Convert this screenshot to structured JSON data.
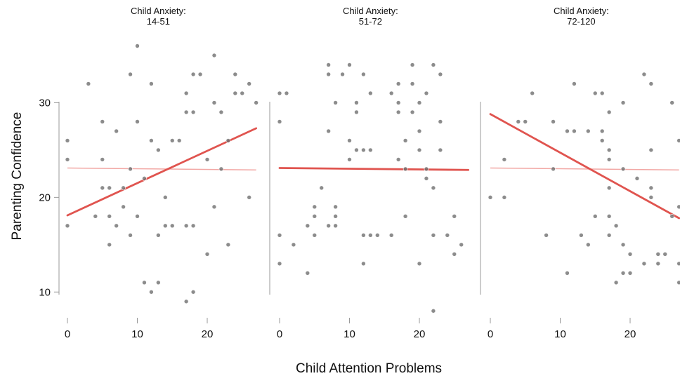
{
  "chart_data": {
    "type": "scatter",
    "xlabel": "Child Attention Problems",
    "ylabel": "Parenting Confidence",
    "xlim": [
      -1,
      27
    ],
    "ylim": [
      7.5,
      37
    ],
    "x_ticks": [
      0,
      10,
      20
    ],
    "y_ticks": [
      10,
      20,
      30
    ],
    "grid": false,
    "colors": {
      "point": "#6b6b6b",
      "fit_line": "#e0544f",
      "reference_line": "#f2a8a5",
      "axis": "#9a9a9a"
    },
    "reference_line": {
      "x": [
        0,
        27
      ],
      "y": [
        23.1,
        22.9
      ]
    },
    "panels": [
      {
        "title": "Child Anxiety:",
        "subtitle": "14-51",
        "fit_line": {
          "x": [
            0,
            27
          ],
          "y": [
            18.1,
            27.3
          ]
        },
        "points": [
          [
            0,
            26
          ],
          [
            0,
            24
          ],
          [
            0,
            17
          ],
          [
            3,
            32
          ],
          [
            4,
            18
          ],
          [
            5,
            28
          ],
          [
            5,
            24
          ],
          [
            5,
            21
          ],
          [
            6,
            21
          ],
          [
            6,
            18
          ],
          [
            6,
            15
          ],
          [
            7,
            27
          ],
          [
            7,
            17
          ],
          [
            8,
            21
          ],
          [
            8,
            19
          ],
          [
            9,
            33
          ],
          [
            9,
            23
          ],
          [
            9,
            16
          ],
          [
            10,
            36
          ],
          [
            10,
            28
          ],
          [
            10,
            18
          ],
          [
            11,
            22
          ],
          [
            11,
            11
          ],
          [
            12,
            32
          ],
          [
            12,
            26
          ],
          [
            12,
            10
          ],
          [
            13,
            25
          ],
          [
            13,
            16
          ],
          [
            13,
            11
          ],
          [
            14,
            20
          ],
          [
            14,
            17
          ],
          [
            15,
            26
          ],
          [
            15,
            17
          ],
          [
            16,
            26
          ],
          [
            17,
            31
          ],
          [
            17,
            29
          ],
          [
            17,
            17
          ],
          [
            17,
            9
          ],
          [
            18,
            33
          ],
          [
            18,
            29
          ],
          [
            18,
            17
          ],
          [
            18,
            10
          ],
          [
            19,
            33
          ],
          [
            20,
            24
          ],
          [
            20,
            14
          ],
          [
            21,
            35
          ],
          [
            21,
            30
          ],
          [
            21,
            19
          ],
          [
            22,
            29
          ],
          [
            22,
            23
          ],
          [
            23,
            26
          ],
          [
            23,
            15
          ],
          [
            24,
            33
          ],
          [
            24,
            31
          ],
          [
            25,
            31
          ],
          [
            26,
            32
          ],
          [
            26,
            20
          ],
          [
            27,
            30
          ]
        ]
      },
      {
        "title": "Child Anxiety:",
        "subtitle": "51-72",
        "fit_line": {
          "x": [
            0,
            27
          ],
          "y": [
            23.1,
            22.9
          ]
        },
        "points": [
          [
            0,
            31
          ],
          [
            0,
            28
          ],
          [
            0,
            16
          ],
          [
            0,
            13
          ],
          [
            1,
            31
          ],
          [
            2,
            15
          ],
          [
            4,
            17
          ],
          [
            4,
            12
          ],
          [
            5,
            19
          ],
          [
            5,
            18
          ],
          [
            5,
            16
          ],
          [
            6,
            21
          ],
          [
            7,
            34
          ],
          [
            7,
            33
          ],
          [
            7,
            27
          ],
          [
            7,
            17
          ],
          [
            8,
            30
          ],
          [
            8,
            19
          ],
          [
            8,
            18
          ],
          [
            8,
            17
          ],
          [
            9,
            33
          ],
          [
            10,
            34
          ],
          [
            10,
            26
          ],
          [
            10,
            24
          ],
          [
            11,
            30
          ],
          [
            11,
            29
          ],
          [
            11,
            25
          ],
          [
            12,
            33
          ],
          [
            12,
            25
          ],
          [
            12,
            16
          ],
          [
            12,
            13
          ],
          [
            13,
            31
          ],
          [
            13,
            25
          ],
          [
            13,
            16
          ],
          [
            14,
            16
          ],
          [
            16,
            31
          ],
          [
            16,
            16
          ],
          [
            17,
            32
          ],
          [
            17,
            30
          ],
          [
            17,
            29
          ],
          [
            17,
            24
          ],
          [
            18,
            26
          ],
          [
            18,
            23
          ],
          [
            18,
            18
          ],
          [
            19,
            34
          ],
          [
            19,
            32
          ],
          [
            19,
            29
          ],
          [
            20,
            30
          ],
          [
            20,
            27
          ],
          [
            20,
            25
          ],
          [
            20,
            13
          ],
          [
            21,
            31
          ],
          [
            21,
            23
          ],
          [
            21,
            22
          ],
          [
            22,
            34
          ],
          [
            22,
            21
          ],
          [
            22,
            16
          ],
          [
            22,
            8
          ],
          [
            23,
            33
          ],
          [
            23,
            28
          ],
          [
            23,
            25
          ],
          [
            24,
            16
          ],
          [
            25,
            18
          ],
          [
            25,
            14
          ],
          [
            26,
            15
          ]
        ]
      },
      {
        "title": "Child Anxiety:",
        "subtitle": "72-120",
        "fit_line": {
          "x": [
            0,
            27
          ],
          "y": [
            28.8,
            17.8
          ]
        },
        "points": [
          [
            0,
            20
          ],
          [
            2,
            24
          ],
          [
            2,
            20
          ],
          [
            4,
            28
          ],
          [
            5,
            28
          ],
          [
            6,
            31
          ],
          [
            8,
            16
          ],
          [
            9,
            28
          ],
          [
            9,
            23
          ],
          [
            11,
            27
          ],
          [
            11,
            12
          ],
          [
            12,
            32
          ],
          [
            12,
            27
          ],
          [
            13,
            16
          ],
          [
            14,
            27
          ],
          [
            14,
            15
          ],
          [
            15,
            31
          ],
          [
            15,
            18
          ],
          [
            16,
            31
          ],
          [
            16,
            27
          ],
          [
            16,
            26
          ],
          [
            17,
            25
          ],
          [
            17,
            24
          ],
          [
            17,
            21
          ],
          [
            17,
            18
          ],
          [
            17,
            16
          ],
          [
            17,
            29
          ],
          [
            18,
            17
          ],
          [
            18,
            11
          ],
          [
            19,
            30
          ],
          [
            19,
            23
          ],
          [
            19,
            15
          ],
          [
            19,
            12
          ],
          [
            20,
            14
          ],
          [
            20,
            12
          ],
          [
            21,
            22
          ],
          [
            22,
            33
          ],
          [
            22,
            13
          ],
          [
            23,
            32
          ],
          [
            23,
            21
          ],
          [
            23,
            20
          ],
          [
            23,
            25
          ],
          [
            24,
            14
          ],
          [
            24,
            13
          ],
          [
            25,
            14
          ],
          [
            26,
            30
          ],
          [
            26,
            18
          ],
          [
            27,
            26
          ],
          [
            27,
            19
          ],
          [
            27,
            13
          ],
          [
            27,
            11
          ]
        ]
      }
    ]
  }
}
